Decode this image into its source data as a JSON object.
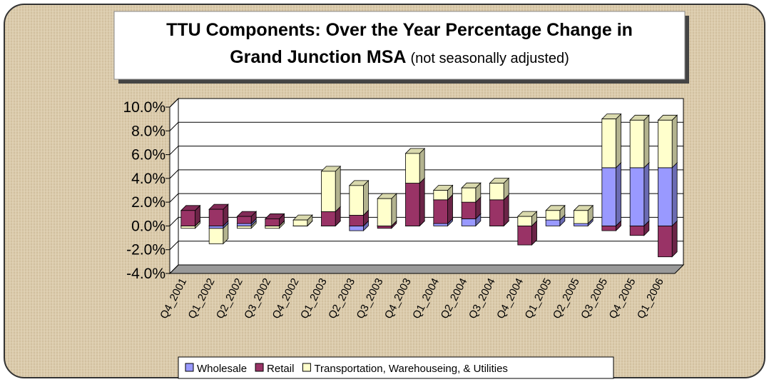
{
  "chart_data": {
    "type": "bar3d_stacked",
    "title": [
      "TTU Components: Over the Year Percentage Change in",
      "Grand Junction MSA"
    ],
    "subtitle": "(not seasonally adjusted)",
    "categories": [
      "Q4_2001",
      "Q1_2002",
      "Q2_2002",
      "Q3_2002",
      "Q4_2002",
      "Q1_2003",
      "Q2_2003",
      "Q3_2003",
      "Q4_2003",
      "Q1_2004",
      "Q2_2004",
      "Q3_2004",
      "Q4_2004",
      "Q1_2005",
      "Q2_2005",
      "Q3_2005",
      "Q4_2005",
      "Q1_2006"
    ],
    "series": [
      {
        "name": "Wholesale",
        "color": "#9999ff",
        "values": [
          0,
          -0.2,
          0.2,
          0,
          0,
          0,
          -0.4,
          0,
          0,
          0.2,
          0.6,
          0,
          0,
          0.5,
          0.2,
          4.9,
          4.9,
          4.9
        ]
      },
      {
        "name": "Retail",
        "color": "#993366",
        "values": [
          1.3,
          1.4,
          0.6,
          0.6,
          0,
          1.2,
          0.9,
          -0.2,
          3.6,
          2.0,
          1.4,
          2.2,
          -1.6,
          0,
          0,
          -0.4,
          -0.8,
          -2.6
        ]
      },
      {
        "name": "Transportation, Warehouseing, & Utilities",
        "color": "#ffffcc",
        "values": [
          -0.2,
          -1.3,
          -0.2,
          -0.2,
          0.5,
          3.4,
          2.5,
          2.3,
          2.5,
          0.8,
          1.2,
          1.4,
          0.8,
          0.8,
          1.1,
          4.1,
          4.0,
          4.0
        ]
      }
    ],
    "ylim": [
      -4,
      10
    ],
    "yticks": [
      {
        "value": -4,
        "label": "-4.0%"
      },
      {
        "value": -2,
        "label": "-2.0%"
      },
      {
        "value": 0,
        "label": "0.0%"
      },
      {
        "value": 2,
        "label": "2.0%"
      },
      {
        "value": 4,
        "label": "4.0%"
      },
      {
        "value": 6,
        "label": "6.0%"
      },
      {
        "value": 8,
        "label": "8.0%"
      },
      {
        "value": 10,
        "label": "10.0%"
      }
    ],
    "grid": true,
    "legend": "bottom"
  }
}
